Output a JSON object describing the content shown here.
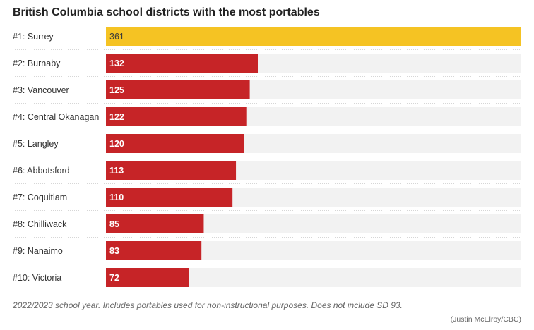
{
  "chart_data": {
    "type": "bar",
    "orientation": "horizontal",
    "title": "British Columbia school districts with the most portables",
    "categories": [
      "#1: Surrey",
      "#2: Burnaby",
      "#3: Vancouver",
      "#4: Central Okanagan",
      "#5: Langley",
      "#6: Abbotsford",
      "#7: Coquitlam",
      "#8: Chilliwack",
      "#9: Nanaimo",
      "#10: Victoria"
    ],
    "values": [
      361,
      132,
      125,
      122,
      120,
      113,
      110,
      85,
      83,
      72
    ],
    "xlim": [
      0,
      361
    ],
    "grid": false,
    "colors": {
      "highlight": "#f5c323",
      "bar": "#c62427",
      "track": "#f2f2f2",
      "highlight_text": "#3a3a3a",
      "bar_text": "#ffffff"
    },
    "highlight_index": 0
  },
  "footer": {
    "note": "2022/2023 school year. Includes portables used for non-instructional purposes. Does not include SD 93.",
    "credit": "(Justin McElroy/CBC)"
  }
}
